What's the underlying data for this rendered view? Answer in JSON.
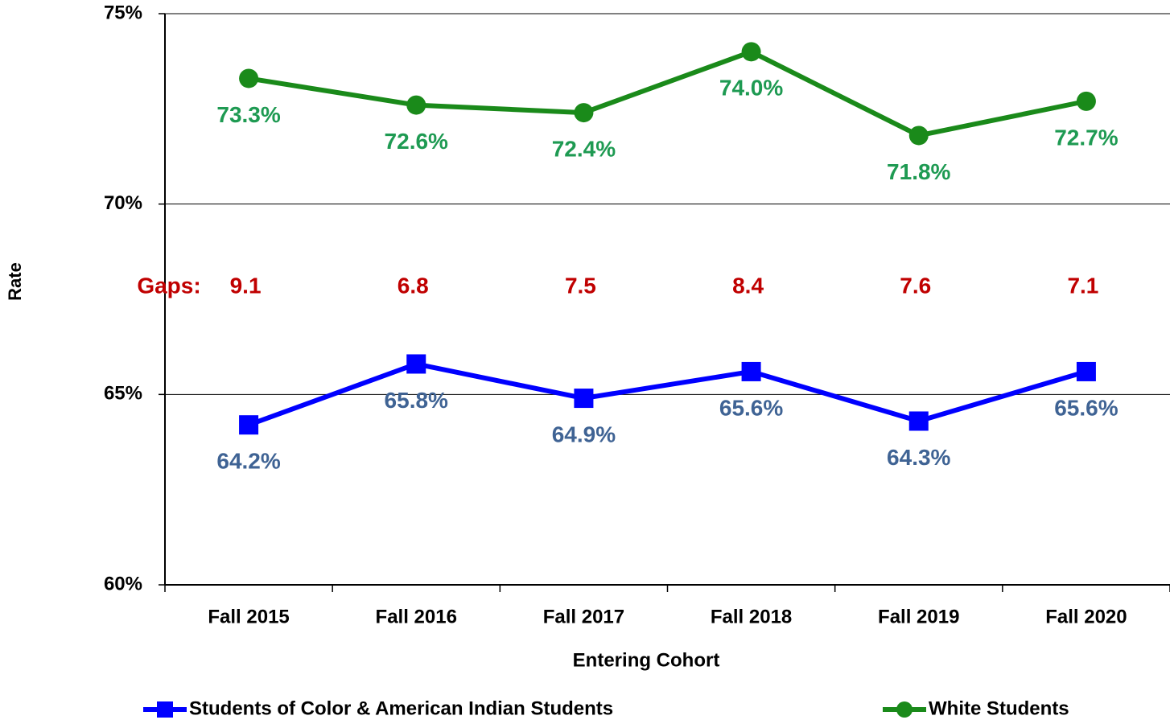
{
  "chart_data": {
    "type": "line",
    "x_label": "Entering Cohort",
    "y_label": "Rate",
    "categories": [
      "Fall 2015",
      "Fall 2016",
      "Fall 2017",
      "Fall 2018",
      "Fall 2019",
      "Fall 2020"
    ],
    "series": [
      {
        "name": "Students of Color & American Indian Students",
        "color": "#0000ff",
        "label_color": "#3f6394",
        "marker": "square",
        "values": [
          64.2,
          65.8,
          64.9,
          65.6,
          64.3,
          65.6
        ],
        "value_labels": [
          "64.2%",
          "65.8%",
          "64.9%",
          "65.6%",
          "64.3%",
          "65.6%"
        ]
      },
      {
        "name": "White Students",
        "color": "#1a8a1a",
        "label_color": "#1e9a52",
        "marker": "circle",
        "values": [
          73.3,
          72.6,
          72.4,
          74.0,
          71.8,
          72.7
        ],
        "value_labels": [
          "73.3%",
          "72.6%",
          "72.4%",
          "74.0%",
          "71.8%",
          "72.7%"
        ]
      }
    ],
    "annotation": {
      "label": "Gaps:",
      "color": "#c00000",
      "values": [
        9.1,
        6.8,
        7.5,
        8.4,
        7.6,
        7.1
      ]
    },
    "ylim": [
      60,
      75
    ],
    "yticks": [
      {
        "value": 60,
        "label": "60%"
      },
      {
        "value": 65,
        "label": "65%"
      },
      {
        "value": 70,
        "label": "70%"
      },
      {
        "value": 75,
        "label": "75%"
      }
    ],
    "grid": true
  }
}
